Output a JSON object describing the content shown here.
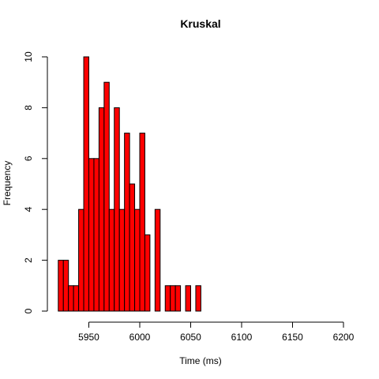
{
  "chart_data": {
    "type": "bar",
    "title": "Kruskal",
    "xlabel": "Time (ms)",
    "ylabel": "Frequency",
    "bin_width": 5,
    "x_start": 5920,
    "values": [
      2,
      2,
      1,
      1,
      4,
      10,
      6,
      6,
      8,
      9,
      4,
      8,
      4,
      7,
      5,
      4,
      7,
      3,
      0,
      4,
      0,
      1,
      1,
      1,
      0,
      1,
      0,
      1
    ],
    "xlim": [
      5920,
      6200
    ],
    "ylim": [
      0,
      10
    ],
    "xticks": [
      5950,
      6000,
      6050,
      6100,
      6150,
      6200
    ],
    "yticks": [
      0,
      2,
      4,
      6,
      8,
      10
    ],
    "bar_color": "#ff0000",
    "grid": false
  }
}
